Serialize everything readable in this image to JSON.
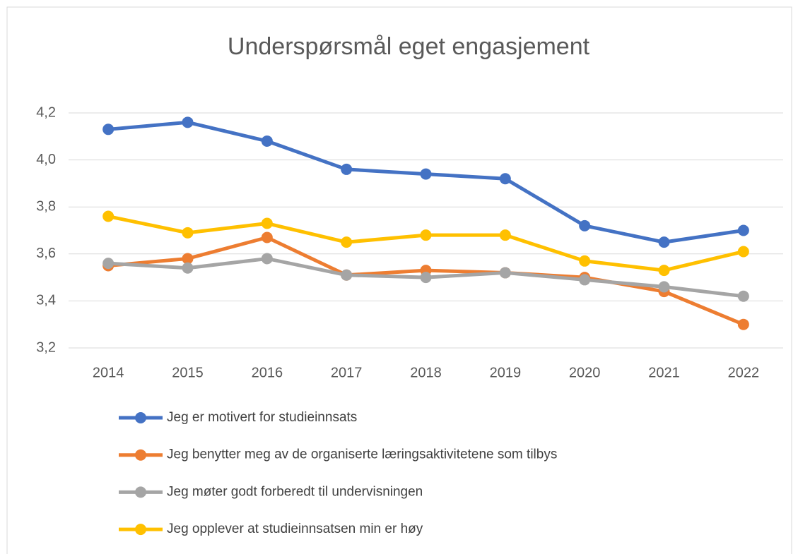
{
  "chart_data": {
    "type": "line",
    "title": "Underspørsmål eget engasjement",
    "categories": [
      "2014",
      "2015",
      "2016",
      "2017",
      "2018",
      "2019",
      "2020",
      "2021",
      "2022"
    ],
    "series": [
      {
        "name": "Jeg er motivert for studieinnsats",
        "color": "#4472c4",
        "values": [
          4.13,
          4.16,
          4.08,
          3.96,
          3.94,
          3.92,
          3.72,
          3.65,
          3.7
        ]
      },
      {
        "name": "Jeg benytter meg av de organiserte læringsaktivitetene som tilbys",
        "color": "#ed7d31",
        "values": [
          3.55,
          3.58,
          3.67,
          3.51,
          3.53,
          3.52,
          3.5,
          3.44,
          3.3
        ]
      },
      {
        "name": "Jeg møter godt forberedt til undervisningen",
        "color": "#a5a5a5",
        "values": [
          3.56,
          3.54,
          3.58,
          3.51,
          3.5,
          3.52,
          3.49,
          3.46,
          3.42
        ]
      },
      {
        "name": "Jeg opplever at studieinnsatsen min er høy",
        "color": "#ffc000",
        "values": [
          3.76,
          3.69,
          3.73,
          3.65,
          3.68,
          3.68,
          3.57,
          3.53,
          3.61
        ]
      }
    ],
    "ylim": [
      3.2,
      4.2
    ],
    "yticks": [
      {
        "value": 3.2,
        "label": "3,2"
      },
      {
        "value": 3.4,
        "label": "3,4"
      },
      {
        "value": 3.6,
        "label": "3,6"
      },
      {
        "value": 3.8,
        "label": "3,8"
      },
      {
        "value": 4.0,
        "label": "4,0"
      },
      {
        "value": 4.2,
        "label": "4,2"
      }
    ],
    "grid": true,
    "legend": "bottom"
  }
}
